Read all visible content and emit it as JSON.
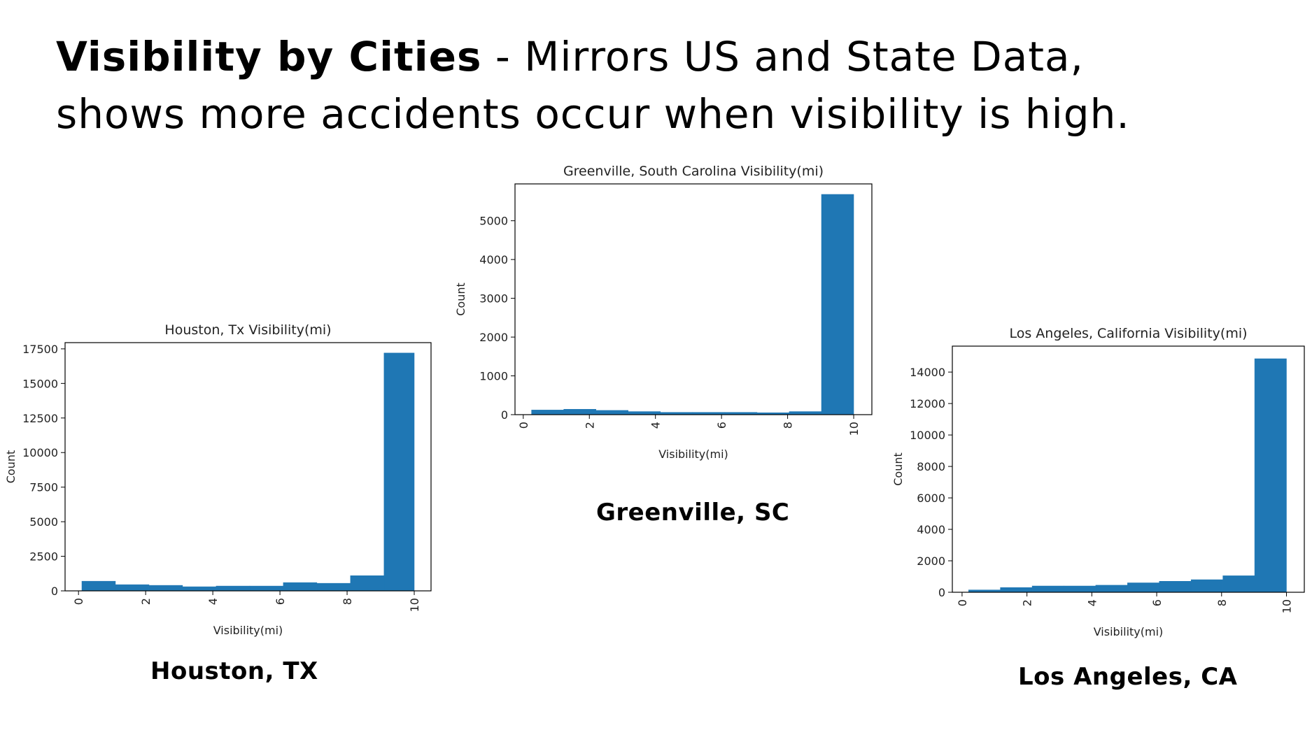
{
  "slide": {
    "title_bold": "Visibility by Cities",
    "title_line1_rest": " - Mirrors US and State Data,",
    "title_line2": "shows more accidents occur when visibility is high."
  },
  "colors": {
    "bar": "#1f77b4",
    "axes": "#000000",
    "text": "#222222"
  },
  "captions": {
    "houston": "Houston, TX",
    "greenville": "Greenville, SC",
    "los_angeles": "Los Angeles, CA"
  },
  "chart_data": [
    {
      "id": "houston",
      "type": "bar",
      "histogram": true,
      "title": "Houston, Tx Visibility(mi)",
      "xlabel": "Visibility(mi)",
      "ylabel": "Count",
      "bins": [
        [
          0.1,
          1.1
        ],
        [
          1.1,
          2.1
        ],
        [
          2.1,
          3.1
        ],
        [
          3.1,
          4.1
        ],
        [
          4.1,
          5.1
        ],
        [
          5.1,
          6.1
        ],
        [
          6.1,
          7.1
        ],
        [
          7.1,
          8.1
        ],
        [
          8.1,
          9.1
        ],
        [
          9.1,
          10.0
        ]
      ],
      "values": [
        700,
        450,
        400,
        300,
        350,
        350,
        600,
        550,
        1100,
        17200
      ],
      "xlim": [
        -0.4,
        10.5
      ],
      "ylim": [
        0,
        17950
      ],
      "xticks": [
        0,
        2,
        4,
        6,
        8,
        10
      ],
      "yticks": [
        0,
        2500,
        5000,
        7500,
        10000,
        12500,
        15000,
        17500
      ],
      "ytick_labels": [
        "0",
        "2500",
        "5000",
        "7500",
        "10000",
        "12500",
        "15000",
        "17500"
      ],
      "grid": false
    },
    {
      "id": "greenville",
      "type": "bar",
      "histogram": true,
      "title": "Greenville, South Carolina Visibility(mi)",
      "xlabel": "Visibility(mi)",
      "ylabel": "Count",
      "bins": [
        [
          0.25,
          1.225
        ],
        [
          1.225,
          2.2
        ],
        [
          2.2,
          3.175
        ],
        [
          3.175,
          4.15
        ],
        [
          4.15,
          5.125
        ],
        [
          5.125,
          6.1
        ],
        [
          6.1,
          7.075
        ],
        [
          7.075,
          8.05
        ],
        [
          8.05,
          9.025
        ],
        [
          9.025,
          10.0
        ]
      ],
      "values": [
        120,
        140,
        110,
        80,
        60,
        60,
        60,
        50,
        80,
        5680
      ],
      "xlim": [
        -0.25,
        10.55
      ],
      "ylim": [
        0,
        5950
      ],
      "xticks": [
        0,
        2,
        4,
        6,
        8,
        10
      ],
      "yticks": [
        0,
        1000,
        2000,
        3000,
        4000,
        5000
      ],
      "ytick_labels": [
        "0",
        "1000",
        "2000",
        "3000",
        "4000",
        "5000"
      ],
      "grid": false
    },
    {
      "id": "los_angeles",
      "type": "bar",
      "histogram": true,
      "title": "Los Angeles, California Visibility(mi)",
      "xlabel": "Visibility(mi)",
      "ylabel": "Count",
      "bins": [
        [
          0.2,
          1.18
        ],
        [
          1.18,
          2.16
        ],
        [
          2.16,
          3.14
        ],
        [
          3.14,
          4.12
        ],
        [
          4.12,
          5.1
        ],
        [
          5.1,
          6.08
        ],
        [
          6.08,
          7.06
        ],
        [
          7.06,
          8.04
        ],
        [
          8.04,
          9.02
        ],
        [
          9.02,
          10.0
        ]
      ],
      "values": [
        150,
        300,
        400,
        400,
        450,
        600,
        700,
        800,
        1050,
        14850
      ],
      "xlim": [
        -0.3,
        10.55
      ],
      "ylim": [
        0,
        15650
      ],
      "xticks": [
        0,
        2,
        4,
        6,
        8,
        10
      ],
      "yticks": [
        0,
        2000,
        4000,
        6000,
        8000,
        10000,
        12000,
        14000
      ],
      "ytick_labels": [
        "0",
        "2000",
        "4000",
        "6000",
        "8000",
        "10000",
        "12000",
        "14000"
      ],
      "grid": false
    }
  ]
}
